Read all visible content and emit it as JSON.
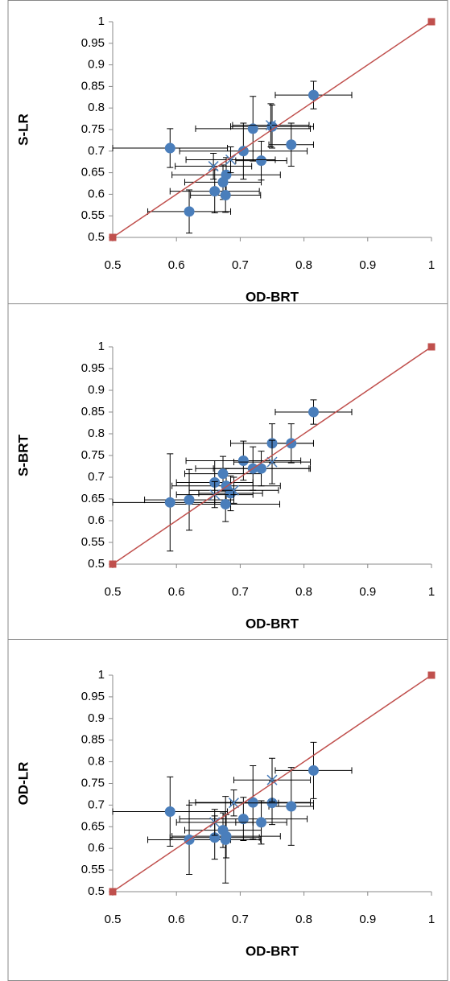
{
  "chart_data": [
    {
      "type": "scatter",
      "xlabel": "OD-BRT",
      "ylabel": "S-LR",
      "xlim": [
        0.5,
        1
      ],
      "ylim": [
        0.5,
        1
      ],
      "xticks": [
        0.5,
        0.6,
        0.7,
        0.8,
        0.9,
        1
      ],
      "yticks": [
        0.5,
        0.55,
        0.6,
        0.65,
        0.7,
        0.75,
        0.8,
        0.85,
        0.9,
        0.95,
        1
      ],
      "series": [
        {
          "color": "#4a7ebb",
          "marker": "circle",
          "x": [
            0.815,
            0.75,
            0.72,
            0.705,
            0.59,
            0.78,
            0.733,
            0.678,
            0.673,
            0.66,
            0.677,
            0.62
          ],
          "y": [
            0.83,
            0.757,
            0.752,
            0.7,
            0.707,
            0.715,
            0.678,
            0.645,
            0.628,
            0.607,
            0.598,
            0.56
          ],
          "xerr": [
            0.06,
            0.065,
            0.09,
            0.1,
            0.09,
            0.035,
            0.04,
            0.085,
            0.06,
            0.07,
            0.055,
            0.065
          ],
          "yerr": [
            0.032,
            0.05,
            0.075,
            0.065,
            0.045,
            0.05,
            0.045,
            0.04,
            0.04,
            0.05,
            0.04,
            0.05
          ]
        },
        {
          "color": "#4a7ebb",
          "marker": "cross",
          "x": [
            0.658,
            0.685,
            0.748
          ],
          "y": [
            0.665,
            0.68,
            0.76
          ],
          "xerr": [
            0.06,
            0.07,
            0.06
          ],
          "yerr": [
            0.03,
            0.03,
            0.05
          ]
        },
        {
          "color": "#c0504d",
          "marker": "square",
          "line": true,
          "x": [
            0.5,
            1
          ],
          "y": [
            0.5,
            1
          ]
        }
      ]
    },
    {
      "type": "scatter",
      "xlabel": "OD-BRT",
      "ylabel": "S-BRT",
      "xlim": [
        0.5,
        1
      ],
      "ylim": [
        0.5,
        1
      ],
      "xticks": [
        0.5,
        0.6,
        0.7,
        0.8,
        0.9,
        1
      ],
      "yticks": [
        0.5,
        0.55,
        0.6,
        0.65,
        0.7,
        0.75,
        0.8,
        0.85,
        0.9,
        0.95,
        1
      ],
      "series": [
        {
          "color": "#4a7ebb",
          "marker": "circle",
          "x": [
            0.815,
            0.75,
            0.78,
            0.705,
            0.72,
            0.733,
            0.673,
            0.66,
            0.678,
            0.685,
            0.677,
            0.62,
            0.59
          ],
          "y": [
            0.85,
            0.778,
            0.778,
            0.738,
            0.72,
            0.72,
            0.708,
            0.688,
            0.68,
            0.663,
            0.638,
            0.648,
            0.642
          ],
          "xerr": [
            0.06,
            0.065,
            0.035,
            0.09,
            0.09,
            0.075,
            0.06,
            0.06,
            0.085,
            0.05,
            0.085,
            0.07,
            0.09
          ],
          "yerr": [
            0.028,
            0.045,
            0.045,
            0.045,
            0.05,
            0.04,
            0.04,
            0.05,
            0.04,
            0.04,
            0.04,
            0.07,
            0.112
          ]
        },
        {
          "color": "#4a7ebb",
          "marker": "cross",
          "x": [
            0.66,
            0.69,
            0.75
          ],
          "y": [
            0.66,
            0.67,
            0.735
          ],
          "xerr": [
            0.06,
            0.07,
            0.06
          ],
          "yerr": [
            0.03,
            0.03,
            0.05
          ]
        },
        {
          "color": "#c0504d",
          "marker": "square",
          "line": true,
          "x": [
            0.5,
            1
          ],
          "y": [
            0.5,
            1
          ]
        }
      ]
    },
    {
      "type": "scatter",
      "xlabel": "OD-BRT",
      "ylabel": "OD-LR",
      "xlim": [
        0.5,
        1
      ],
      "ylim": [
        0.5,
        1
      ],
      "xticks": [
        0.5,
        0.6,
        0.7,
        0.8,
        0.9,
        1
      ],
      "yticks": [
        0.5,
        0.55,
        0.6,
        0.65,
        0.7,
        0.75,
        0.8,
        0.85,
        0.9,
        0.95,
        1
      ],
      "series": [
        {
          "color": "#4a7ebb",
          "marker": "circle",
          "x": [
            0.815,
            0.75,
            0.78,
            0.72,
            0.705,
            0.733,
            0.59,
            0.673,
            0.66,
            0.678,
            0.677,
            0.62
          ],
          "y": [
            0.78,
            0.705,
            0.697,
            0.706,
            0.668,
            0.66,
            0.685,
            0.642,
            0.625,
            0.628,
            0.62,
            0.62
          ],
          "xerr": [
            0.06,
            0.065,
            0.035,
            0.09,
            0.1,
            0.04,
            0.09,
            0.06,
            0.07,
            0.085,
            0.055,
            0.065
          ],
          "yerr": [
            0.065,
            0.05,
            0.09,
            0.085,
            0.05,
            0.05,
            0.08,
            0.04,
            0.05,
            0.05,
            0.1,
            0.08
          ]
        },
        {
          "color": "#4a7ebb",
          "marker": "cross",
          "x": [
            0.66,
            0.69,
            0.75
          ],
          "y": [
            0.66,
            0.705,
            0.758
          ],
          "xerr": [
            0.06,
            0.07,
            0.06
          ],
          "yerr": [
            0.03,
            0.03,
            0.05
          ]
        },
        {
          "color": "#c0504d",
          "marker": "square",
          "line": true,
          "x": [
            0.5,
            1
          ],
          "y": [
            0.5,
            1
          ]
        }
      ]
    }
  ]
}
